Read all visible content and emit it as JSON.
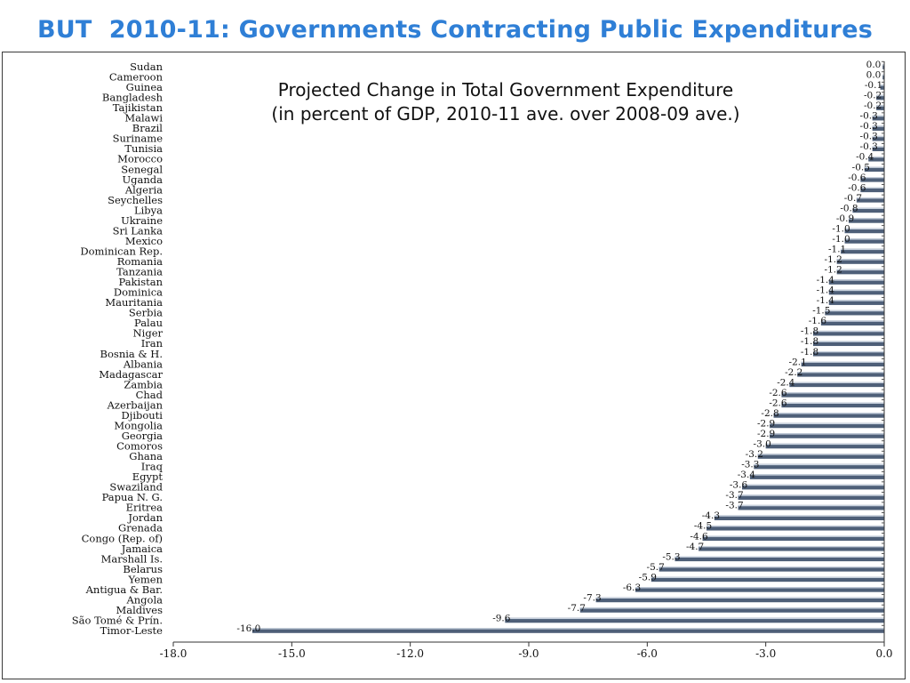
{
  "slide": {
    "title": "BUT  2010-11: Governments Contracting Public Expenditures"
  },
  "colors": {
    "title": "#2f7fd6",
    "bar": "#4e5f78",
    "bar_highlight": "#c9d2de",
    "axis": "#333333",
    "text": "#111111"
  },
  "chart_data": {
    "type": "bar",
    "orientation": "horizontal",
    "title": "Projected Change in Total Government Expenditure",
    "subtitle": "(in percent of GDP, 2010-11 ave. over 2008-09  ave.)",
    "xlim": [
      -18.0,
      0.0
    ],
    "xticks": [
      -18.0,
      -15.0,
      -12.0,
      -9.0,
      -6.0,
      -3.0,
      0.0
    ],
    "xtick_labels": [
      "-18.0",
      "-15.0",
      "-12.0",
      "-9.0",
      "-6.0",
      "-3.0",
      "0.0"
    ],
    "grid": false,
    "categories": [
      "Sudan",
      "Cameroon",
      "Guinea",
      "Bangladesh",
      "Tajikistan",
      "Malawi",
      "Brazil",
      "Suriname",
      "Tunisia",
      "Morocco",
      "Senegal",
      "Uganda",
      "Algeria",
      "Seychelles",
      "Libya",
      "Ukraine",
      "Sri Lanka",
      "Mexico",
      "Dominican Rep.",
      "Romania",
      "Tanzania",
      "Pakistan",
      "Dominica",
      "Mauritania",
      "Serbia",
      "Palau",
      "Niger",
      "Iran",
      "Bosnia & H.",
      "Albania",
      "Madagascar",
      "Zambia",
      "Chad",
      "Azerbaijan",
      "Djibouti",
      "Mongolia",
      "Georgia",
      "Comoros",
      "Ghana",
      "Iraq",
      "Egypt",
      "Swaziland",
      "Papua N. G.",
      "Eritrea",
      "Jordan",
      "Grenada",
      "Congo (Rep. of)",
      "Jamaica",
      "Marshall Is.",
      "Belarus",
      "Yemen",
      "Antigua & Bar.",
      "Angola",
      "Maldives",
      "São Tomé & Prín.",
      "Timor-Leste"
    ],
    "values": [
      0.0,
      0.0,
      -0.1,
      -0.2,
      -0.2,
      -0.3,
      -0.3,
      -0.3,
      -0.3,
      -0.4,
      -0.5,
      -0.6,
      -0.6,
      -0.7,
      -0.8,
      -0.9,
      -1.0,
      -1.0,
      -1.1,
      -1.2,
      -1.2,
      -1.4,
      -1.4,
      -1.4,
      -1.5,
      -1.6,
      -1.8,
      -1.8,
      -1.8,
      -2.1,
      -2.2,
      -2.4,
      -2.6,
      -2.6,
      -2.8,
      -2.9,
      -2.9,
      -3.0,
      -3.2,
      -3.3,
      -3.4,
      -3.6,
      -3.7,
      -3.7,
      -4.3,
      -4.5,
      -4.6,
      -4.7,
      -5.3,
      -5.7,
      -5.9,
      -6.3,
      -7.3,
      -7.7,
      -9.6,
      -16.0
    ],
    "value_labels": [
      "0.0",
      "0.0",
      "-0.1",
      "-0.2",
      "-0.2",
      "-0.3",
      "-0.3",
      "-0.3",
      "-0.3",
      "-0.4",
      "-0.5",
      "-0.6",
      "-0.6",
      "-0.7",
      "-0.8",
      "-0.9",
      "-1.0",
      "-1.0",
      "-1.1",
      "-1.2",
      "-1.2",
      "-1.4",
      "-1.4",
      "-1.4",
      "-1.5",
      "-1.6",
      "-1.8",
      "-1.8",
      "-1.8",
      "-2.1",
      "-2.2",
      "-2.4",
      "-2.6",
      "-2.6",
      "-2.8",
      "-2.9",
      "-2.9",
      "-3.0",
      "-3.2",
      "-3.3",
      "-3.4",
      "-3.6",
      "-3.7",
      "-3.7",
      "-4.3",
      "-4.5",
      "-4.6",
      "-4.7",
      "-5.3",
      "-5.7",
      "-5.9",
      "-6.3",
      "-7.3",
      "-7.7",
      "-9.6",
      "-16.0"
    ]
  }
}
